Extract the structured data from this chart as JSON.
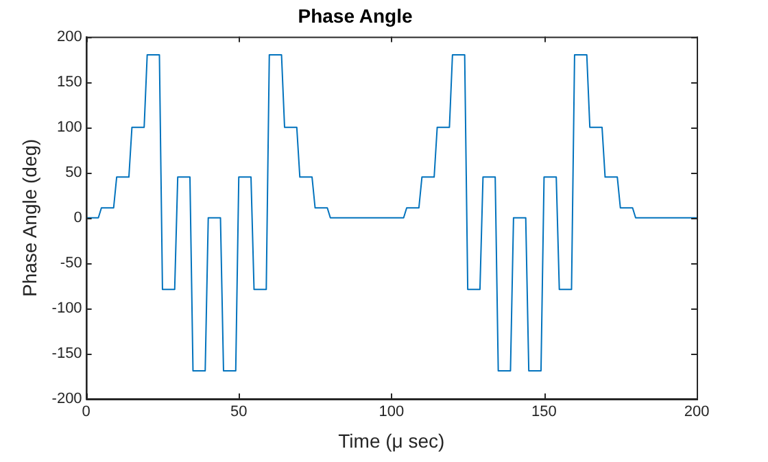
{
  "chart_data": {
    "type": "line",
    "title": "Phase Angle",
    "xlabel": "Time (μ sec)",
    "ylabel": "Phase Angle (deg)",
    "x": [
      0,
      4,
      5,
      9,
      10,
      14,
      15,
      19,
      20,
      24,
      25,
      29,
      30,
      34,
      35,
      39,
      40,
      44,
      45,
      49,
      50,
      54,
      55,
      59,
      60,
      64,
      65,
      69,
      70,
      74,
      75,
      79,
      80,
      104,
      105,
      109,
      110,
      114,
      115,
      119,
      120,
      124,
      125,
      129,
      130,
      134,
      135,
      139,
      140,
      144,
      145,
      149,
      150,
      154,
      155,
      159,
      160,
      164,
      165,
      169,
      170,
      174,
      175,
      179,
      180,
      200
    ],
    "series": [
      {
        "color": "#0072bd",
        "values": [
          0,
          0,
          11,
          11,
          45,
          45,
          100,
          100,
          180,
          180,
          -79,
          -79,
          45,
          45,
          -169,
          -169,
          0,
          0,
          -169,
          -169,
          45,
          45,
          -79,
          -79,
          180,
          180,
          100,
          100,
          45,
          45,
          11,
          11,
          0,
          0,
          11,
          11,
          45,
          45,
          100,
          100,
          180,
          180,
          -79,
          -79,
          45,
          45,
          -169,
          -169,
          0,
          0,
          -169,
          -169,
          45,
          45,
          -79,
          -79,
          180,
          180,
          100,
          100,
          45,
          45,
          11,
          11,
          0,
          0
        ]
      }
    ],
    "xlim": [
      0,
      200
    ],
    "xticks": [
      0,
      50,
      100,
      150,
      200
    ],
    "ylim": [
      -200,
      200
    ],
    "yticks": [
      -200,
      -150,
      -100,
      -50,
      0,
      50,
      100,
      150,
      200
    ],
    "grid": false,
    "legend": false,
    "marker": "none",
    "line_style": "solid"
  }
}
